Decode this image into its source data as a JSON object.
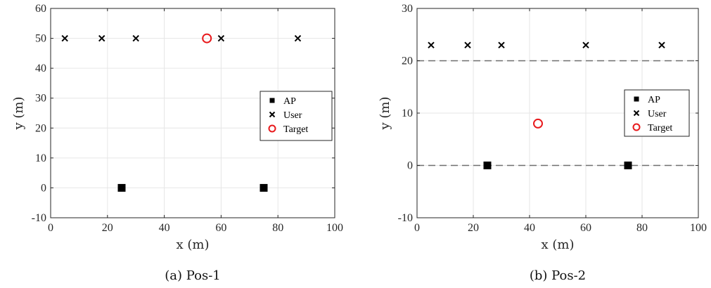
{
  "chart_data": [
    {
      "type": "scatter",
      "xlabel": "x (m)",
      "ylabel": "y (m)",
      "xlim": [
        0,
        100
      ],
      "ylim": [
        -10,
        60
      ],
      "x_ticks": [
        0,
        20,
        40,
        60,
        80,
        100
      ],
      "y_ticks": [
        -10,
        0,
        10,
        20,
        30,
        40,
        50,
        60
      ],
      "x_tick_labels": [
        "0",
        "20",
        "40",
        "60",
        "80",
        "100"
      ],
      "y_tick_labels": [
        "-10",
        "0",
        "10",
        "20",
        "30",
        "40",
        "50",
        "60"
      ],
      "grid": true,
      "legend_position": "right",
      "caption": "(a) Pos-1",
      "reference_lines": [],
      "series": [
        {
          "name": "AP",
          "marker": "square",
          "color": "#000000",
          "points": [
            [
              25,
              0
            ],
            [
              75,
              0
            ]
          ]
        },
        {
          "name": "User",
          "marker": "x",
          "color": "#000000",
          "points": [
            [
              5,
              50
            ],
            [
              18,
              50
            ],
            [
              30,
              50
            ],
            [
              60,
              50
            ],
            [
              87,
              50
            ]
          ]
        },
        {
          "name": "Target",
          "marker": "circle",
          "color": "#e8191c",
          "points": [
            [
              55,
              50
            ]
          ]
        }
      ]
    },
    {
      "type": "scatter",
      "xlabel": "x (m)",
      "ylabel": "y (m)",
      "xlim": [
        0,
        100
      ],
      "ylim": [
        -10,
        30
      ],
      "x_ticks": [
        0,
        20,
        40,
        60,
        80,
        100
      ],
      "y_ticks": [
        -10,
        0,
        10,
        20,
        30
      ],
      "x_tick_labels": [
        "0",
        "20",
        "40",
        "60",
        "80",
        "100"
      ],
      "y_tick_labels": [
        "-10",
        "0",
        "10",
        "20",
        "30"
      ],
      "grid": true,
      "legend_position": "right",
      "caption": "(b) Pos-2",
      "reference_lines": [
        0,
        20
      ],
      "series": [
        {
          "name": "AP",
          "marker": "square",
          "color": "#000000",
          "points": [
            [
              25,
              0
            ],
            [
              75,
              0
            ]
          ]
        },
        {
          "name": "User",
          "marker": "x",
          "color": "#000000",
          "points": [
            [
              5,
              23
            ],
            [
              18,
              23
            ],
            [
              30,
              23
            ],
            [
              60,
              23
            ],
            [
              87,
              23
            ]
          ]
        },
        {
          "name": "Target",
          "marker": "circle",
          "color": "#e8191c",
          "points": [
            [
              43,
              8
            ]
          ]
        }
      ]
    }
  ]
}
